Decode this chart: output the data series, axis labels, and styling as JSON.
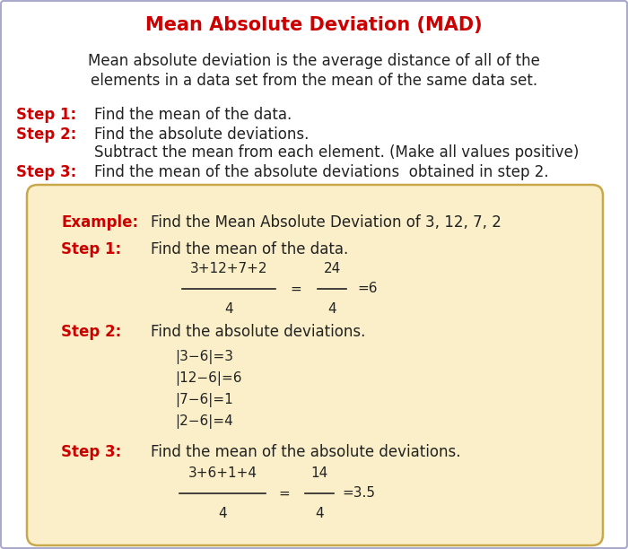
{
  "title": "Mean Absolute Deviation (MAD)",
  "title_color": "#cc0000",
  "bg_color": "#ffffff",
  "box_bg_color": "#faefc8",
  "box_border_color": "#c8a84b",
  "def_line1": "Mean absolute deviation is the average distance of all of the",
  "def_line2": "elements in a data set from the mean of the same data set.",
  "step_color": "#cc0000",
  "text_color": "#222222",
  "steps": [
    {
      "label": "Step 1:",
      "text": "Find the mean of the data."
    },
    {
      "label": "Step 2:",
      "text": "Find the absolute deviations."
    },
    {
      "label": "",
      "text": "Subtract the mean from each element. (Make all values positive)"
    },
    {
      "label": "Step 3:",
      "text": "Find the mean of the absolute deviations  obtained in step 2."
    }
  ],
  "example_label": "Example:",
  "example_text": "Find the Mean Absolute Deviation of 3, 12, 7, 2",
  "ex_step1_label": "Step 1:",
  "ex_step1_text": "Find the mean of the data.",
  "ex_step2_label": "Step 2:",
  "ex_step2_text": "Find the absolute deviations.",
  "ex_step3_label": "Step 3:",
  "ex_step3_text": "Find the mean of the absolute deviations.",
  "frac1_num": "3+12+7+2",
  "frac1_den": "4",
  "frac2_num": "24",
  "frac2_den": "4",
  "frac1_result": "=6",
  "abs_devs": [
    "|3−6|=3",
    "|12−6|=6",
    "|7−6|=1",
    "|2−6|=4"
  ],
  "frac3_num": "3+6+1+4",
  "frac3_den": "4",
  "frac4_num": "14",
  "frac4_den": "4",
  "frac3_result": "=3.5",
  "border_color": "#aaaacc"
}
